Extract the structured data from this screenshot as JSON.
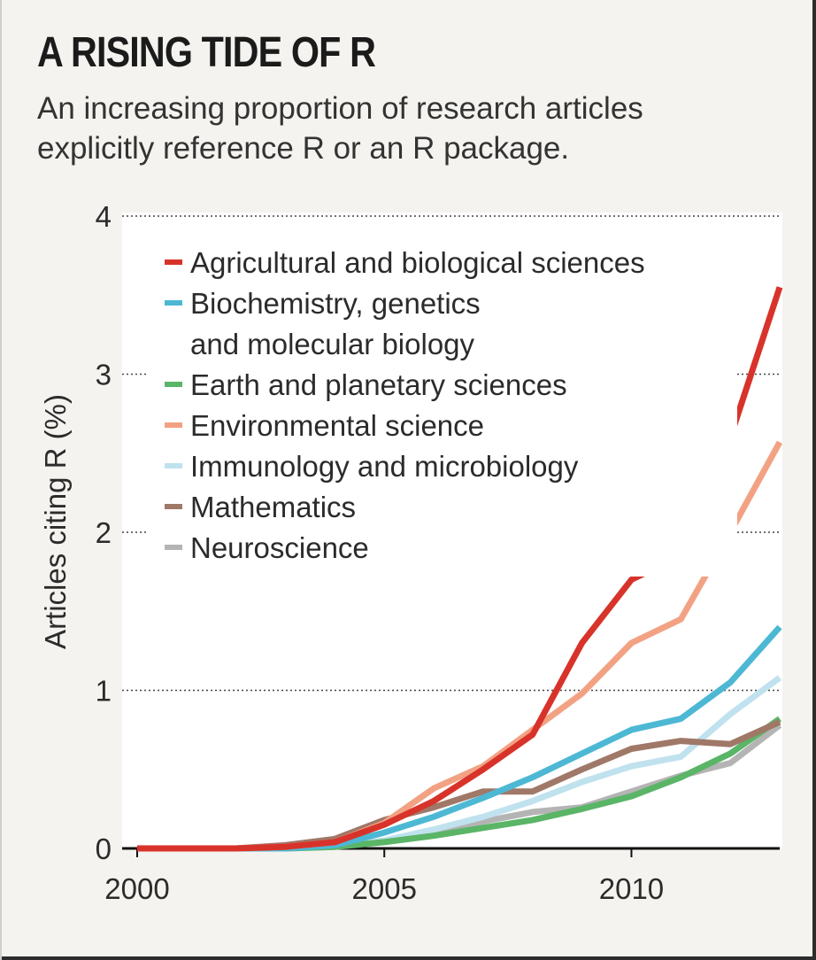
{
  "chart_data": {
    "type": "line",
    "title": "A RISING TIDE OF R",
    "subtitle_lines": [
      "An increasing proportion of research articles",
      "explicitly reference R or an R package."
    ],
    "ylabel": "Articles citing R (%)",
    "xlabel": "",
    "xlim": [
      2000,
      2013
    ],
    "ylim": [
      0,
      4
    ],
    "x_ticks": [
      2000,
      2005,
      2010
    ],
    "y_ticks": [
      0,
      1,
      2,
      3,
      4
    ],
    "grid": "horizontal dotted",
    "legend_position": "top-left",
    "x": [
      2000,
      2001,
      2002,
      2003,
      2004,
      2005,
      2006,
      2007,
      2008,
      2009,
      2010,
      2011,
      2012,
      2013
    ],
    "series": [
      {
        "name": "Agricultural and biological sciences",
        "color": "#d8332a",
        "values": [
          0,
          0,
          0,
          0.01,
          0.04,
          0.15,
          0.3,
          0.5,
          0.72,
          1.3,
          1.7,
          1.85,
          2.6,
          3.55
        ]
      },
      {
        "name": "Biochemistry, genetics and molecular biology",
        "color": "#4db8d4",
        "values": [
          0,
          0,
          0,
          0,
          0.02,
          0.1,
          0.2,
          0.32,
          0.45,
          0.6,
          0.75,
          0.82,
          1.05,
          1.4
        ]
      },
      {
        "name": "Earth and planetary sciences",
        "color": "#5ab567",
        "values": [
          0,
          0,
          0,
          0,
          0.01,
          0.04,
          0.08,
          0.13,
          0.18,
          0.25,
          0.33,
          0.45,
          0.6,
          0.82
        ]
      },
      {
        "name": "Environmental science",
        "color": "#f2a283",
        "values": [
          0,
          0,
          0,
          0.01,
          0.04,
          0.16,
          0.38,
          0.52,
          0.75,
          0.98,
          1.3,
          1.45,
          2.0,
          2.57
        ]
      },
      {
        "name": "Immunology and microbiology",
        "color": "#bfe2ee",
        "values": [
          0,
          0,
          0,
          0,
          0.01,
          0.05,
          0.12,
          0.2,
          0.3,
          0.42,
          0.52,
          0.58,
          0.85,
          1.08
        ]
      },
      {
        "name": "Mathematics",
        "color": "#a07868",
        "values": [
          0,
          0,
          0,
          0.02,
          0.06,
          0.18,
          0.26,
          0.36,
          0.36,
          0.5,
          0.63,
          0.68,
          0.66,
          0.8
        ]
      },
      {
        "name": "Neuroscience",
        "color": "#b4b4b4",
        "values": [
          0,
          0,
          0,
          0,
          0.01,
          0.05,
          0.1,
          0.17,
          0.23,
          0.26,
          0.36,
          0.46,
          0.54,
          0.78
        ]
      }
    ],
    "legend": [
      {
        "lines": [
          "Agricultural and biological sciences"
        ],
        "color": "#d8332a"
      },
      {
        "lines": [
          "Biochemistry, genetics",
          "and molecular biology"
        ],
        "color": "#4db8d4"
      },
      {
        "lines": [
          "Earth and planetary sciences"
        ],
        "color": "#5ab567"
      },
      {
        "lines": [
          "Environmental science"
        ],
        "color": "#f2a283"
      },
      {
        "lines": [
          "Immunology and microbiology"
        ],
        "color": "#bfe2ee"
      },
      {
        "lines": [
          "Mathematics"
        ],
        "color": "#a07868"
      },
      {
        "lines": [
          "Neuroscience"
        ],
        "color": "#b4b4b4"
      }
    ]
  }
}
